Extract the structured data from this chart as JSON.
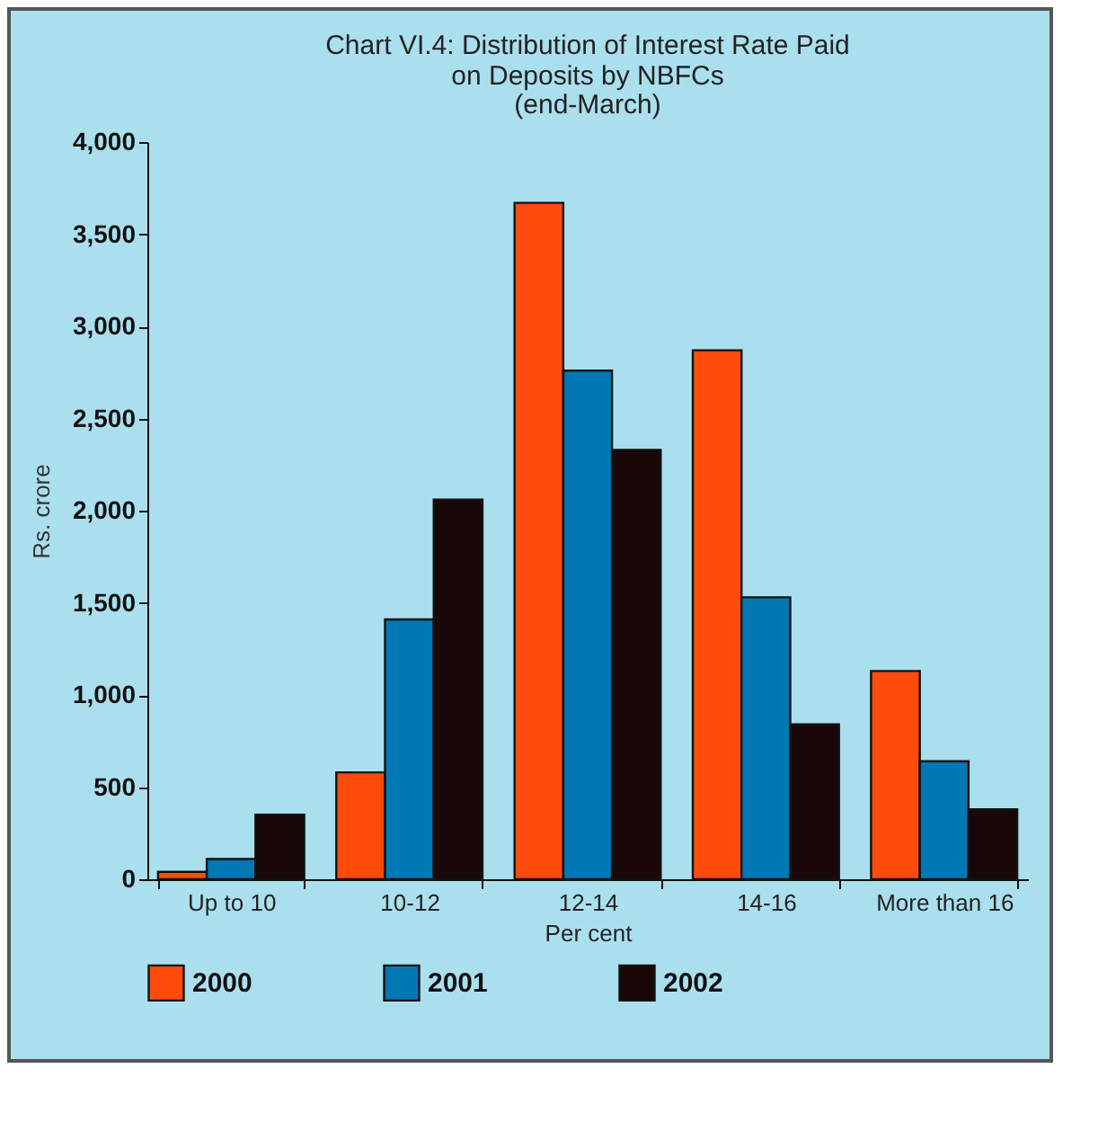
{
  "chart_data": {
    "type": "bar",
    "title": "Chart VI.4: Distribution of Interest Rate Paid\non Deposits by NBFCs",
    "subtitle": "(end-March)",
    "xlabel": "Per cent",
    "ylabel": "Rs. crore",
    "categories": [
      "Up to 10",
      "10-12",
      "12-14",
      "14-16",
      "More than 16"
    ],
    "series": [
      {
        "name": "2000",
        "color": "#ff4c0c",
        "values": [
          40,
          580,
          3670,
          2870,
          1130
        ]
      },
      {
        "name": "2001",
        "color": "#0078b4",
        "values": [
          110,
          1410,
          2760,
          1530,
          640
        ]
      },
      {
        "name": "2002",
        "color": "#1a0808",
        "values": [
          350,
          2060,
          2330,
          840,
          380
        ]
      }
    ],
    "ylim": [
      0,
      4000
    ],
    "yticks": [
      0,
      {
        "value": 500,
        "label": "500"
      },
      {
        "value": 1000,
        "label": "1,000"
      },
      {
        "value": 1500,
        "label": "1,500"
      },
      {
        "value": 2000,
        "label": "2,000"
      },
      {
        "value": 2500,
        "label": "2,500"
      },
      {
        "value": 3000,
        "label": "3,000"
      },
      {
        "value": 3500,
        "label": "3,500"
      },
      {
        "value": 4000,
        "label": "4,000"
      }
    ],
    "grid": false,
    "legend": "bottom"
  }
}
